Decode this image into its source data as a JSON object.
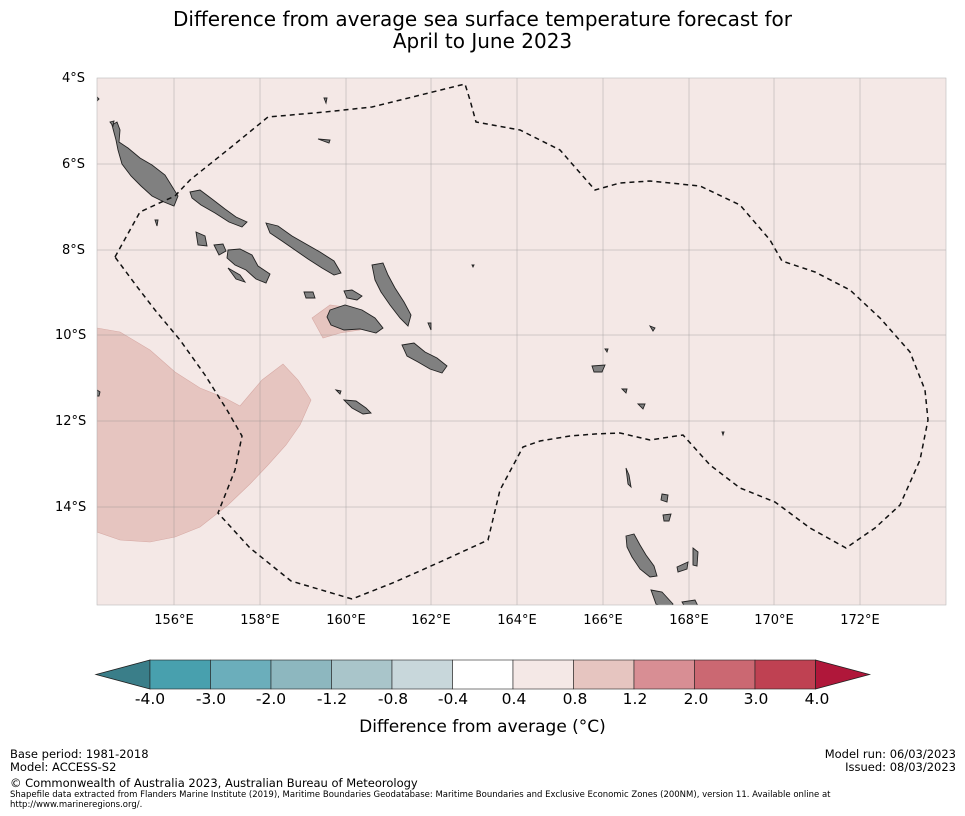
{
  "title": {
    "line1": "Difference from average sea surface temperature forecast for",
    "line2": "April to June 2023"
  },
  "map": {
    "lat_labels": [
      "4°S",
      "6°S",
      "8°S",
      "10°S",
      "12°S",
      "14°S"
    ],
    "lon_labels": [
      "156°E",
      "158°E",
      "160°E",
      "162°E",
      "164°E",
      "166°E",
      "168°E",
      "170°E",
      "172°E"
    ],
    "background_class": "0.4 to 0.8",
    "background_color": "#f4e8e6",
    "warm_anomaly_color": "#e6c5c0",
    "land_color": "#808080",
    "eez_style": "dashed"
  },
  "colorbar": {
    "ticks": [
      "-4.0",
      "-3.0",
      "-2.0",
      "-1.2",
      "-0.8",
      "-0.4",
      "0.4",
      "0.8",
      "1.2",
      "2.0",
      "3.0",
      "4.0"
    ],
    "colors": [
      "#3a7e89",
      "#48a0ae",
      "#6baebb",
      "#8db7bf",
      "#a9c5ca",
      "#c8d7db",
      "#ffffff",
      "#f4e8e6",
      "#e6c5c0",
      "#d88e94",
      "#cb6872",
      "#bf4152",
      "#b0173a"
    ],
    "title": "Difference from average (°C)"
  },
  "footer": {
    "base_period": "Base period: 1981-2018",
    "model": "Model: ACCESS-S2",
    "model_run": "Model run: 06/03/2023",
    "issued": "Issued: 08/03/2023",
    "copyright": "© Commonwealth of Australia 2023, Australian Bureau of Meteorology",
    "shapefile_line1": "Shapefile data extracted from Flanders Marine Institute (2019), Maritime Boundaries Geodatabase: Maritime Boundaries and Exclusive Economic Zones (200NM), version 11. Available online at",
    "shapefile_line2": "http://www.marineregions.org/."
  }
}
